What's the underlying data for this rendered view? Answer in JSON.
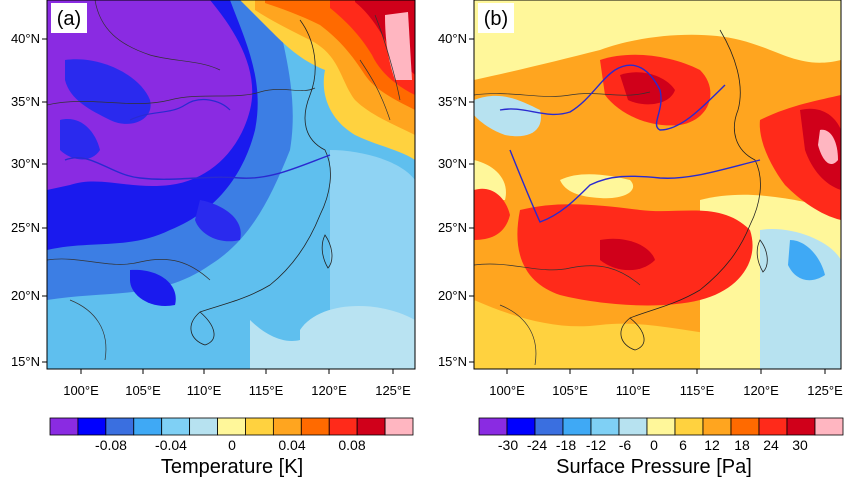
{
  "panels": [
    {
      "label": "(a)",
      "lat_ticks": [
        "40°N",
        "35°N",
        "30°N",
        "25°N",
        "20°N",
        "15°N"
      ],
      "lon_ticks": [
        "100°E",
        "105°E",
        "110°E",
        "115°E",
        "120°E",
        "125°E"
      ],
      "colorbar": {
        "title": "Temperature [K]",
        "tick_labels": [
          "-0.08",
          "-0.04",
          "0",
          "0.04",
          "0.08"
        ],
        "colors": [
          "#8a2be2",
          "#0000ff",
          "#3a6fe0",
          "#3fa9f5",
          "#7fd0f5",
          "#b7e2f0",
          "#fff79a",
          "#ffd23f",
          "#ffa51f",
          "#ff6a00",
          "#ff2a1a",
          "#d0001a",
          "#ffb6c1"
        ]
      }
    },
    {
      "label": "(b)",
      "lat_ticks": [
        "40°N",
        "35°N",
        "30°N",
        "25°N",
        "20°N",
        "15°N"
      ],
      "lon_ticks": [
        "100°E",
        "105°E",
        "110°E",
        "115°E",
        "120°E",
        "125°E"
      ],
      "colorbar": {
        "title": "Surface Pressure [Pa]",
        "tick_labels": [
          "-30",
          "-24",
          "-18",
          "-12",
          "-6",
          "0",
          "6",
          "12",
          "18",
          "24",
          "30"
        ],
        "colors": [
          "#8a2be2",
          "#0000ff",
          "#3a6fe0",
          "#3fa9f5",
          "#7fd0f5",
          "#b7e2f0",
          "#fff79a",
          "#ffd23f",
          "#ffa51f",
          "#ff6a00",
          "#ff2a1a",
          "#d0001a",
          "#ffb6c1"
        ]
      }
    }
  ]
}
